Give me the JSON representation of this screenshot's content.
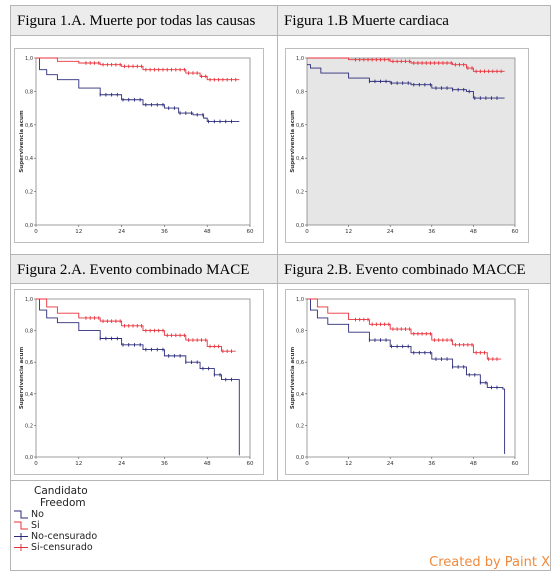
{
  "headers": {
    "fig1a": "Figura 1.A. Muerte por todas las causas",
    "fig1b": "Figura 1.B Muerte cardiaca",
    "fig2a": "Figura 2.A. Evento combinado MACE",
    "fig2b": "Figura 2.B. Evento combinado MACCE"
  },
  "legend": {
    "title_line1": "Candidato",
    "title_line2": "Freedom",
    "items": [
      "No",
      "Si",
      "No-censurado",
      "Si-censurado"
    ]
  },
  "watermark": "Created by Paint X",
  "colors": {
    "no": "#2b2b7a",
    "si": "#e8303a",
    "plot_bg_a": "#ffffff",
    "plot_bg_b": "#e6e6e6"
  },
  "chart_data": [
    {
      "type": "line",
      "title": "Figura 1.A. Muerte por todas las causas",
      "ylabel": "Supervivencia acum",
      "xlim": [
        0,
        60
      ],
      "ylim": [
        0,
        1
      ],
      "xticks": [
        "0",
        "12",
        "24",
        "36",
        "48",
        "60"
      ],
      "yticks": [
        "0,0",
        "0,2",
        "0,4",
        "0,6",
        "0,8",
        "1,0"
      ],
      "series": [
        {
          "name": "No",
          "x": [
            0,
            1,
            3,
            6,
            12,
            18,
            24,
            30,
            36,
            40,
            44,
            47,
            48,
            52,
            57
          ],
          "y": [
            1.0,
            0.93,
            0.9,
            0.87,
            0.82,
            0.78,
            0.75,
            0.72,
            0.7,
            0.67,
            0.66,
            0.64,
            0.62,
            0.62,
            0.62
          ]
        },
        {
          "name": "Si",
          "x": [
            0,
            6,
            12,
            18,
            24,
            30,
            36,
            42,
            46,
            48,
            52,
            57
          ],
          "y": [
            1.0,
            0.98,
            0.97,
            0.96,
            0.95,
            0.93,
            0.93,
            0.91,
            0.89,
            0.87,
            0.87,
            0.87
          ]
        }
      ]
    },
    {
      "type": "line",
      "title": "Figura 1.B Muerte cardiaca",
      "ylabel": "Supervivencia acum",
      "xlim": [
        0,
        60
      ],
      "ylim": [
        0,
        1
      ],
      "xticks": [
        "0",
        "12",
        "24",
        "36",
        "48",
        "60"
      ],
      "yticks": [
        "0,0",
        "0,2",
        "0,4",
        "0,6",
        "0,8",
        "1,0"
      ],
      "series": [
        {
          "name": "No",
          "x": [
            0,
            1,
            4,
            12,
            18,
            24,
            30,
            36,
            42,
            46,
            48,
            52,
            57
          ],
          "y": [
            0.96,
            0.94,
            0.91,
            0.88,
            0.86,
            0.85,
            0.84,
            0.82,
            0.81,
            0.8,
            0.76,
            0.76,
            0.76
          ]
        },
        {
          "name": "Si",
          "x": [
            0,
            6,
            12,
            18,
            24,
            30,
            36,
            42,
            46,
            48,
            52,
            57
          ],
          "y": [
            1.0,
            1.0,
            0.99,
            0.99,
            0.98,
            0.97,
            0.97,
            0.96,
            0.94,
            0.92,
            0.92,
            0.92
          ]
        }
      ]
    },
    {
      "type": "line",
      "title": "Figura 2.A. Evento combinado MACE",
      "ylabel": "Supervivencia acum",
      "xlim": [
        0,
        60
      ],
      "ylim": [
        0,
        1
      ],
      "xticks": [
        "0",
        "12",
        "24",
        "36",
        "48",
        "60"
      ],
      "yticks": [
        "0,0",
        "0,2",
        "0,4",
        "0,6",
        "0,8",
        "1,0"
      ],
      "series": [
        {
          "name": "No",
          "x": [
            0,
            1,
            3,
            6,
            12,
            18,
            24,
            30,
            36,
            42,
            46,
            50,
            52,
            56,
            56.5,
            57
          ],
          "y": [
            1.0,
            0.93,
            0.88,
            0.85,
            0.8,
            0.75,
            0.71,
            0.68,
            0.64,
            0.6,
            0.56,
            0.52,
            0.49,
            0.49,
            0.49,
            0.01
          ]
        },
        {
          "name": "Si",
          "x": [
            0,
            3,
            6,
            12,
            18,
            24,
            30,
            36,
            42,
            48,
            52,
            56
          ],
          "y": [
            1.0,
            0.95,
            0.91,
            0.88,
            0.86,
            0.83,
            0.8,
            0.77,
            0.74,
            0.7,
            0.67,
            0.67
          ]
        }
      ]
    },
    {
      "type": "line",
      "title": "Figura 2.B. Evento combinado MACCE",
      "ylabel": "Supervivencia acum",
      "xlim": [
        0,
        60
      ],
      "ylim": [
        0,
        1
      ],
      "xticks": [
        "0",
        "12",
        "24",
        "36",
        "48",
        "60"
      ],
      "yticks": [
        "0,0",
        "0,2",
        "0,4",
        "0,6",
        "0,8",
        "1,0"
      ],
      "series": [
        {
          "name": "No",
          "x": [
            0,
            1,
            3,
            6,
            12,
            18,
            24,
            30,
            36,
            42,
            46,
            50,
            52,
            56,
            56.5,
            57
          ],
          "y": [
            1.0,
            0.93,
            0.88,
            0.84,
            0.79,
            0.74,
            0.7,
            0.66,
            0.62,
            0.57,
            0.52,
            0.47,
            0.44,
            0.44,
            0.43,
            0.02
          ]
        },
        {
          "name": "Si",
          "x": [
            0,
            3,
            6,
            12,
            18,
            24,
            30,
            36,
            42,
            48,
            52,
            56
          ],
          "y": [
            1.0,
            0.95,
            0.91,
            0.87,
            0.84,
            0.81,
            0.78,
            0.74,
            0.71,
            0.66,
            0.62,
            0.62
          ]
        }
      ]
    }
  ]
}
